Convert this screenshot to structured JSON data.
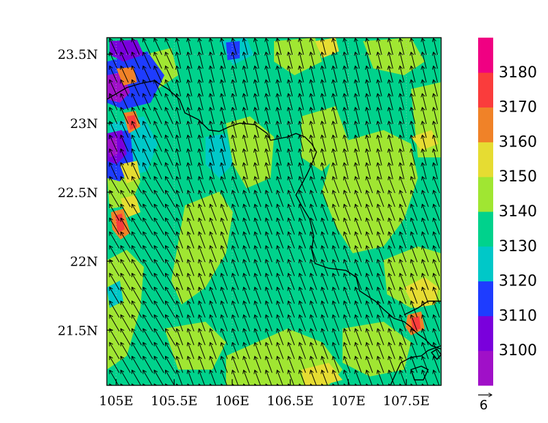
{
  "map": {
    "lon_ticks": [
      "105E",
      "105.5E",
      "106E",
      "106.5E",
      "107E",
      "107.5E"
    ],
    "lat_ticks": [
      "23.5N",
      "23N",
      "22.5N",
      "22N",
      "21.5N"
    ],
    "lon_range": [
      104.92,
      107.8
    ],
    "lat_range": [
      21.1,
      23.62
    ],
    "grid_lines": "dotted",
    "vector_direction": "north-northwest"
  },
  "colorbar": {
    "levels": [
      "3100",
      "3110",
      "3120",
      "3130",
      "3140",
      "3150",
      "3160",
      "3170",
      "3180"
    ],
    "colors": [
      "#a010c8",
      "#7a00dc",
      "#1e3cff",
      "#00c8c8",
      "#00d28c",
      "#a0e632",
      "#e6dc32",
      "#f08228",
      "#fa3c3c",
      "#f00082"
    ]
  },
  "reference_vector": {
    "label": "6"
  }
}
